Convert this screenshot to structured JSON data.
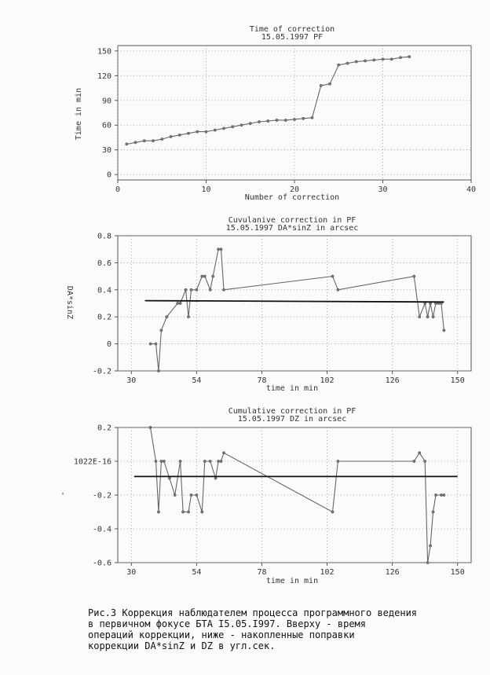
{
  "chart_data": [
    {
      "type": "line",
      "title": "Time of correction",
      "subtitle": "15.05.1997 PF",
      "xlabel": "Number of correction",
      "ylabel": "Time in min",
      "xlim": [
        0,
        40
      ],
      "ylim": [
        0,
        150
      ],
      "xticks": [
        "0",
        "10",
        "20",
        "30",
        "40"
      ],
      "yticks": [
        "0",
        "30",
        "60",
        "90",
        "120",
        "150"
      ],
      "grid": true,
      "series": [
        {
          "x": [
            1,
            2,
            3,
            4,
            5,
            6,
            7,
            8,
            9,
            10,
            11,
            12,
            13,
            14,
            15,
            16,
            17,
            18,
            19,
            20,
            21,
            22,
            23,
            24,
            25,
            26,
            27,
            28,
            29,
            30,
            31,
            32,
            33
          ],
          "values": [
            37,
            39,
            41,
            41,
            43,
            46,
            48,
            50,
            52,
            52,
            54,
            56,
            58,
            60,
            62,
            64,
            65,
            66,
            66,
            67,
            68,
            69,
            108,
            110,
            133,
            135,
            137,
            138,
            139,
            140,
            140,
            142,
            143
          ]
        }
      ]
    },
    {
      "type": "line",
      "title": "Cuvulanive correction in PF",
      "subtitle": "15.05.1997 DA*sinZ in arcsec",
      "xlabel": "time in min",
      "ylabel": "DA*sinZ",
      "xlim": [
        25,
        155
      ],
      "ylim": [
        -0.2,
        0.8
      ],
      "xticks": [
        "30",
        "54",
        "78",
        "102",
        "126",
        "150"
      ],
      "yticks": [
        "0.8",
        "0.6",
        "0.4",
        "0.2",
        "0",
        "-0.2"
      ],
      "grid": true,
      "series": [
        {
          "x": [
            37,
            39,
            40,
            41,
            43,
            47,
            48,
            50,
            51,
            52,
            54,
            56,
            57,
            59,
            60,
            62,
            63,
            64,
            104,
            106,
            134,
            136,
            138,
            139,
            140,
            141,
            142,
            143,
            144,
            145
          ],
          "values": [
            0,
            0,
            -0.2,
            0.1,
            0.2,
            0.3,
            0.3,
            0.4,
            0.2,
            0.4,
            0.4,
            0.5,
            0.5,
            0.4,
            0.5,
            0.7,
            0.7,
            0.4,
            0.5,
            0.4,
            0.5,
            0.2,
            0.3,
            0.2,
            0.3,
            0.2,
            0.3,
            0.3,
            0.3,
            0.1
          ]
        },
        {
          "x": [
            35,
            145
          ],
          "values": [
            0.32,
            0.31
          ]
        }
      ]
    },
    {
      "type": "line",
      "title": "Cumulative correction in PF",
      "subtitle": "15.05.1997 DZ in arcsec",
      "xlabel": "time in min",
      "ylabel": "",
      "xlim": [
        25,
        155
      ],
      "ylim": [
        -0.6,
        0.2
      ],
      "xticks": [
        "30",
        "54",
        "78",
        "102",
        "126",
        "150"
      ],
      "yticks": [
        "0.2",
        "1022E-16",
        "-0.2",
        "-0.4",
        "-0.6"
      ],
      "grid": true,
      "series": [
        {
          "x": [
            37,
            39,
            40,
            41,
            42,
            44,
            46,
            48,
            49,
            51,
            52,
            54,
            56,
            57,
            59,
            61,
            62,
            63,
            64,
            104,
            106,
            134,
            136,
            138,
            139,
            140,
            141,
            142,
            144,
            145
          ],
          "values": [
            0.2,
            0,
            -0.3,
            0,
            0,
            -0.1,
            -0.2,
            0,
            -0.3,
            -0.3,
            -0.2,
            -0.2,
            -0.3,
            0,
            0,
            -0.1,
            0,
            0,
            0.05,
            -0.3,
            0,
            0,
            0.05,
            0,
            -0.6,
            -0.5,
            -0.3,
            -0.2,
            -0.2,
            -0.2
          ]
        },
        {
          "x": [
            31,
            150
          ],
          "values": [
            -0.09,
            -0.09
          ]
        }
      ]
    }
  ],
  "caption": "Рис.3 Коррекция наблюдателем процесса программного ведения\nв первичном фокусе БТА I5.05.I997. Вверху - время\nопераций коррекции, ниже - накопленные поправки\nкоррекции DA*sinZ и DZ в угл.сек."
}
